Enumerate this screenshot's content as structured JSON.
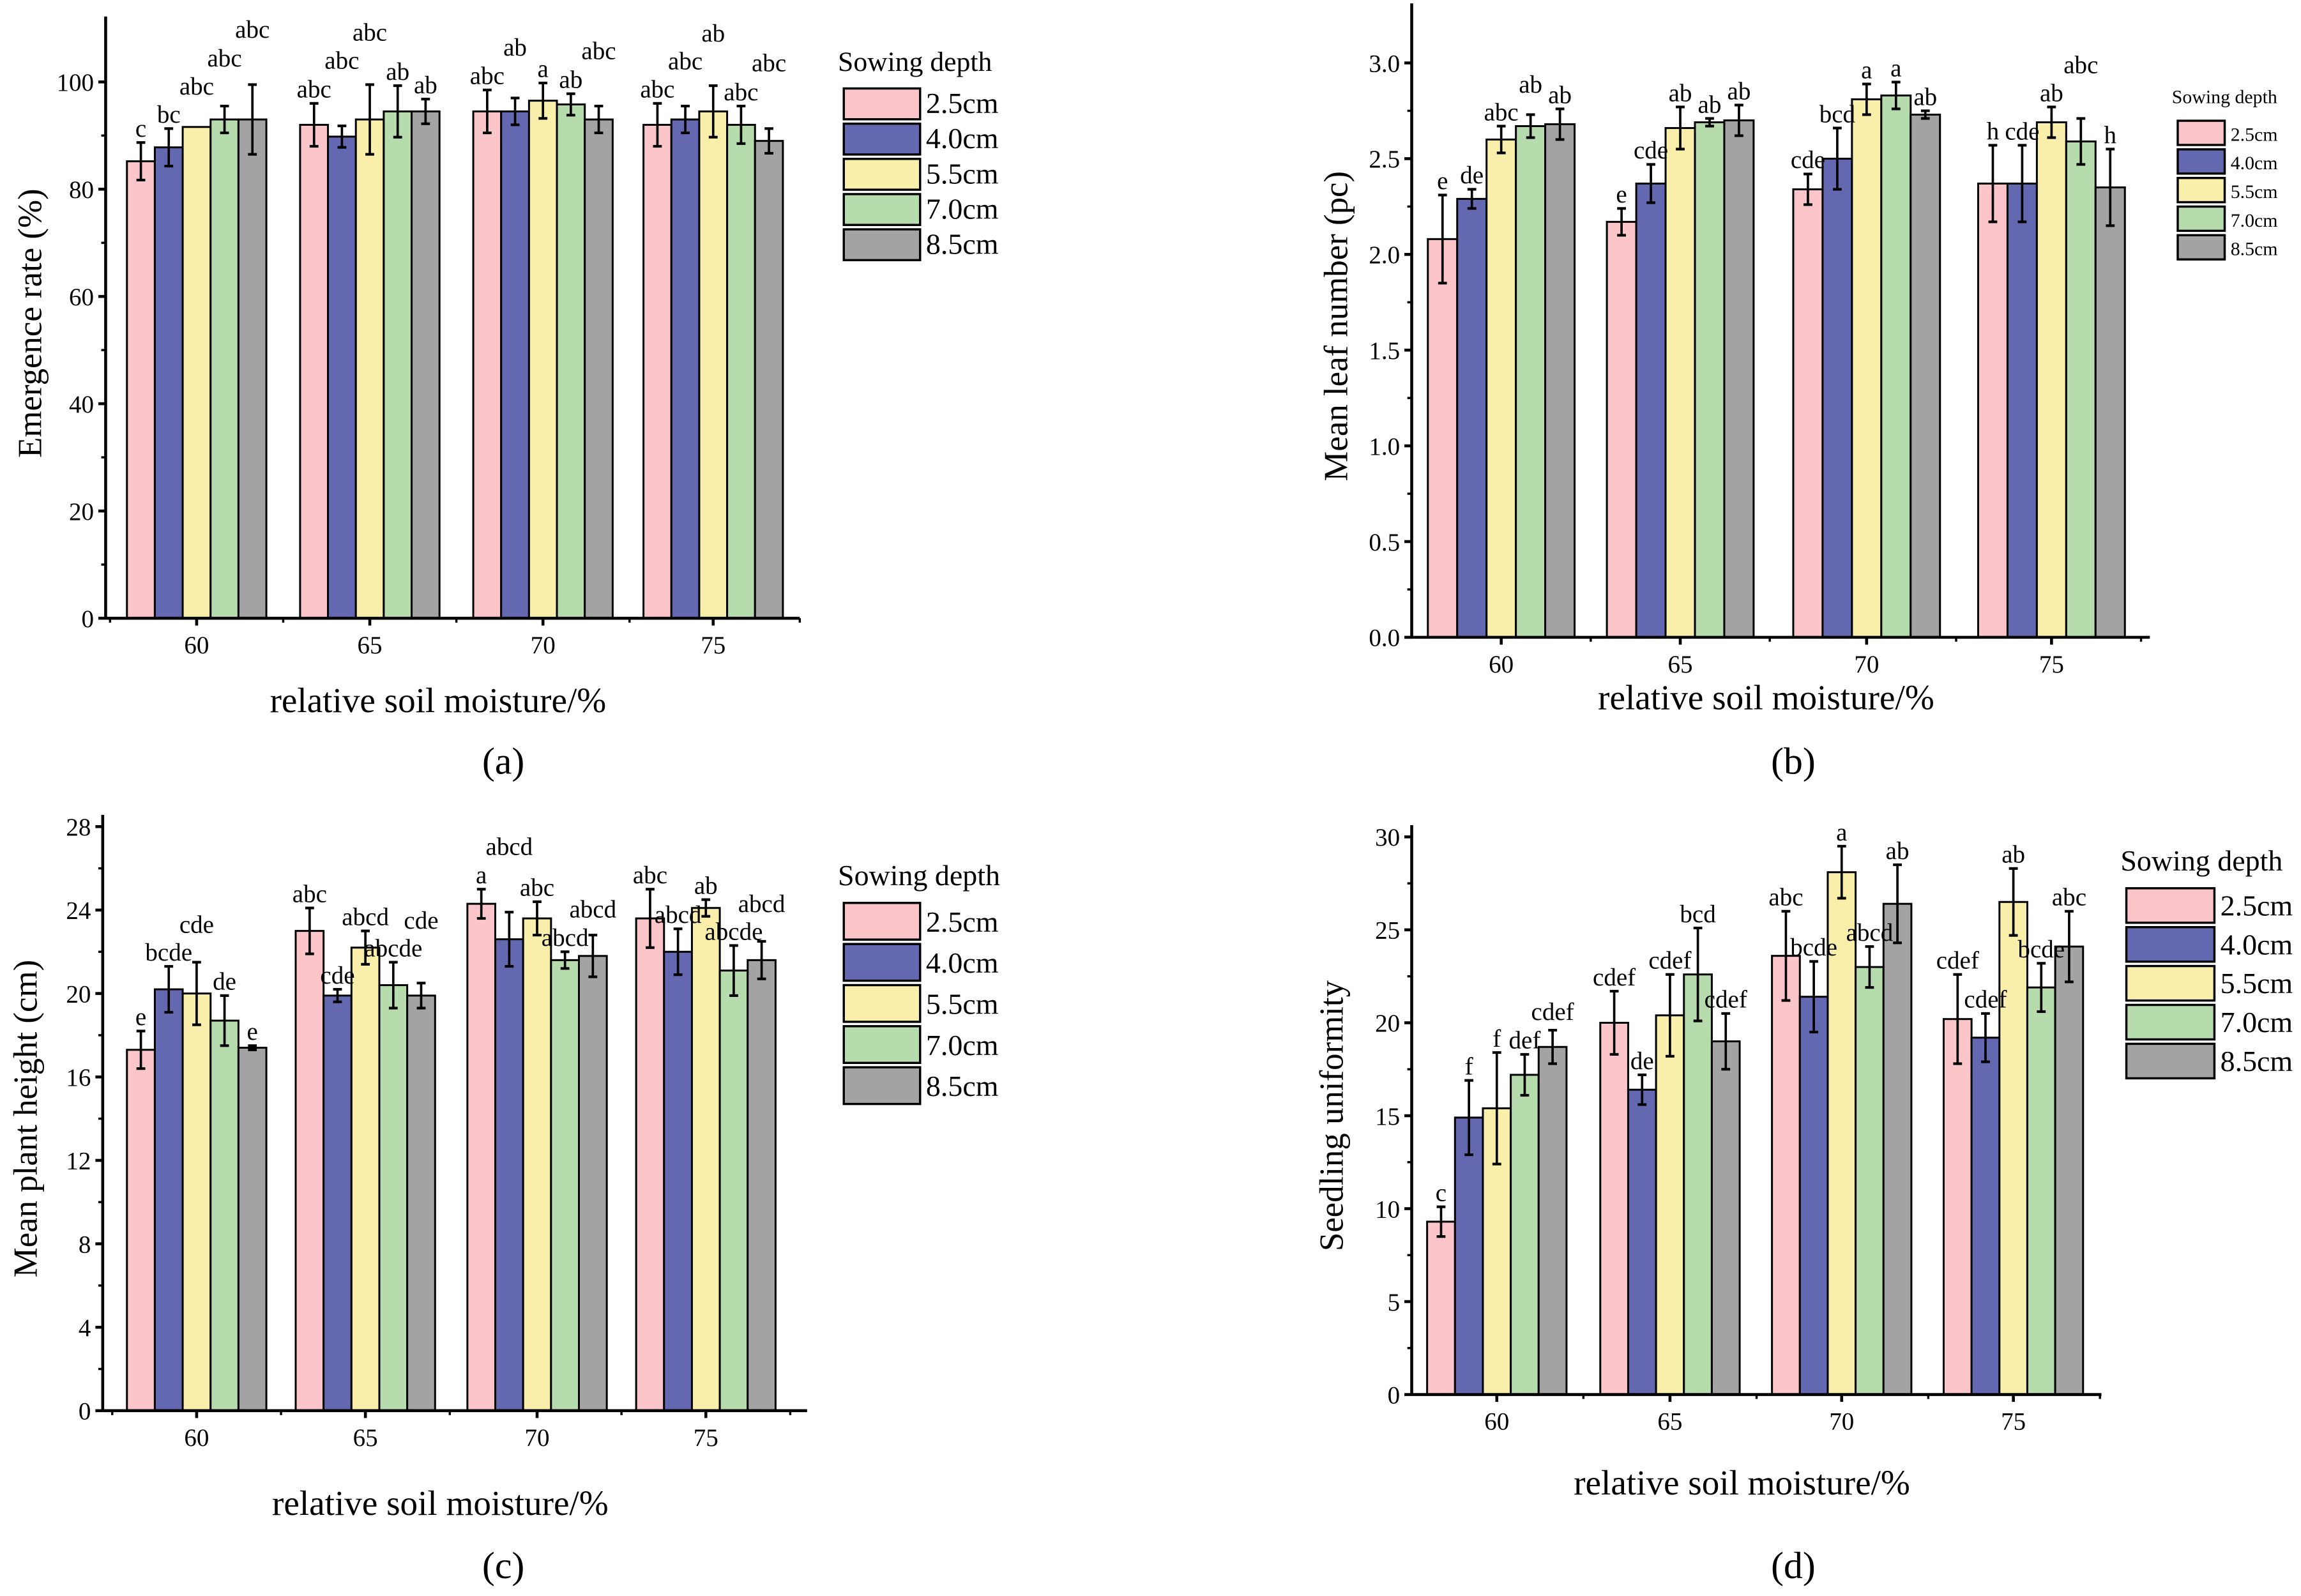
{
  "legend_colors": {
    "2.5cm": "#fcc5ca",
    "4.0cm": "#6468b0",
    "5.5cm": "#f9eeaa",
    "7.0cm": "#b6dcae",
    "8.5cm": "#a3a3a3"
  },
  "chart_data": [
    {
      "panel_label": "(a)",
      "type": "bar",
      "xlabel": "relative soil moisture/%",
      "ylabel": "Emergence rate (%)",
      "ylim": [
        0,
        110
      ],
      "yticks": [
        "0",
        "20",
        "40",
        "60",
        "80",
        "100"
      ],
      "categories": [
        "60",
        "65",
        "70",
        "75"
      ],
      "legend_title": "Sowing depth",
      "series": [
        {
          "name": "2.5cm",
          "values": [
            85.2,
            92,
            94.5,
            92
          ],
          "errors": [
            3.5,
            4,
            4,
            4
          ],
          "letters": [
            "c",
            "abc",
            "abc",
            "abc"
          ]
        },
        {
          "name": "4.0cm",
          "values": [
            87.8,
            89.8,
            94.5,
            93
          ],
          "errors": [
            3.5,
            2,
            2.5,
            2.5
          ],
          "letters": [
            "bc",
            "abc",
            "ab",
            "abc"
          ]
        },
        {
          "name": "5.5cm",
          "values": [
            91.6,
            93,
            96.5,
            94.5
          ],
          "errors": [
            0,
            6.5,
            3.3,
            4.8
          ],
          "letters": [
            "abc",
            "abc",
            "a",
            "ab"
          ]
        },
        {
          "name": "7.0cm",
          "values": [
            93,
            94.5,
            95.8,
            92
          ],
          "errors": [
            2.5,
            4.8,
            2,
            3.5
          ],
          "letters": [
            "abc",
            "ab",
            "ab",
            "abc"
          ]
        },
        {
          "name": "8.5cm",
          "values": [
            93,
            94.5,
            93,
            89
          ],
          "errors": [
            6.5,
            2.3,
            2.5,
            2.3
          ],
          "letters": [
            "abc",
            "ab",
            "abc",
            "abc"
          ]
        }
      ]
    },
    {
      "panel_label": "(b)",
      "type": "bar",
      "xlabel": "relative soil moisture/%",
      "ylabel": "Mean leaf number (pc)",
      "ylim": [
        0,
        3.25
      ],
      "yticks": [
        "0.0",
        "0.5",
        "1.0",
        "1.5",
        "2.0",
        "2.5",
        "3.0"
      ],
      "categories": [
        "60",
        "65",
        "70",
        "75"
      ],
      "legend_title": "Sowing depth",
      "series": [
        {
          "name": "2.5cm",
          "values": [
            2.08,
            2.17,
            2.34,
            2.37
          ],
          "errors": [
            0.23,
            0.07,
            0.08,
            0.2
          ],
          "letters": [
            "e",
            "e",
            "cde",
            "h"
          ]
        },
        {
          "name": "4.0cm",
          "values": [
            2.29,
            2.37,
            2.5,
            2.37
          ],
          "errors": [
            0.05,
            0.1,
            0.16,
            0.2
          ],
          "letters": [
            "de",
            "cde",
            "bcd",
            "cde"
          ]
        },
        {
          "name": "5.5cm",
          "values": [
            2.6,
            2.66,
            2.81,
            2.69
          ],
          "errors": [
            0.07,
            0.11,
            0.08,
            0.08
          ],
          "letters": [
            "abc",
            "ab",
            "a",
            "ab"
          ]
        },
        {
          "name": "7.0cm",
          "values": [
            2.67,
            2.69,
            2.83,
            2.59
          ],
          "errors": [
            0.06,
            0.02,
            0.07,
            0.12
          ],
          "letters": [
            "ab",
            "ab",
            "a",
            "abc"
          ]
        },
        {
          "name": "8.5cm",
          "values": [
            2.68,
            2.7,
            2.73,
            2.35
          ],
          "errors": [
            0.08,
            0.08,
            0.02,
            0.2
          ],
          "letters": [
            "ab",
            "ab",
            "ab",
            "h"
          ]
        }
      ]
    },
    {
      "panel_label": "(c)",
      "type": "bar",
      "xlabel": "relative soil moisture/%",
      "ylabel": "Mean plant height (cm)",
      "ylim": [
        0,
        28
      ],
      "yticks": [
        "0",
        "4",
        "8",
        "12",
        "16",
        "20",
        "24",
        "28"
      ],
      "categories": [
        "60",
        "65",
        "70",
        "75"
      ],
      "legend_title": "Sowing depth",
      "series": [
        {
          "name": "2.5cm",
          "values": [
            17.3,
            23,
            24.3,
            23.6
          ],
          "errors": [
            0.9,
            1.1,
            0.7,
            1.4
          ],
          "letters": [
            "e",
            "abc",
            "a",
            "abc"
          ]
        },
        {
          "name": "4.0cm",
          "values": [
            20.2,
            19.9,
            22.6,
            22
          ],
          "errors": [
            1.1,
            0.3,
            1.3,
            1.1
          ],
          "letters": [
            "bcde",
            "cde",
            "abcd",
            "abcd"
          ]
        },
        {
          "name": "5.5cm",
          "values": [
            20,
            22.2,
            23.6,
            24.1
          ],
          "errors": [
            1.5,
            0.8,
            0.8,
            0.4
          ],
          "letters": [
            "cde",
            "abcd",
            "abc",
            "ab"
          ]
        },
        {
          "name": "7.0cm",
          "values": [
            18.7,
            20.4,
            21.6,
            21.1
          ],
          "errors": [
            1.2,
            1.1,
            0.4,
            1.2
          ],
          "letters": [
            "de",
            "abcde",
            "abcd",
            "abcde"
          ]
        },
        {
          "name": "8.5cm",
          "values": [
            17.4,
            19.9,
            21.8,
            21.6
          ],
          "errors": [
            0.1,
            0.6,
            1,
            0.9
          ],
          "letters": [
            "e",
            "cde",
            "abcd",
            "abcd"
          ]
        }
      ]
    },
    {
      "panel_label": "(d)",
      "type": "bar",
      "xlabel": "relative soil moisture/%",
      "ylabel": "Seedling uniformity",
      "ylim": [
        0,
        30
      ],
      "yticks": [
        "0",
        "5",
        "10",
        "15",
        "20",
        "25",
        "30"
      ],
      "categories": [
        "60",
        "65",
        "70",
        "75"
      ],
      "legend_title": "Sowing depth",
      "series": [
        {
          "name": "2.5cm",
          "values": [
            9.3,
            20,
            23.6,
            20.2
          ],
          "errors": [
            0.8,
            1.7,
            2.4,
            2.4
          ],
          "letters": [
            "c",
            "cdef",
            "abc",
            "cdef"
          ]
        },
        {
          "name": "4.0cm",
          "values": [
            14.9,
            16.4,
            21.4,
            19.2
          ],
          "errors": [
            2,
            0.8,
            1.9,
            1.3
          ],
          "letters": [
            "f",
            "de",
            "bcde",
            "cdef"
          ]
        },
        {
          "name": "5.5cm",
          "values": [
            15.4,
            20.4,
            28.1,
            26.5
          ],
          "errors": [
            3,
            2.2,
            1.4,
            1.8
          ],
          "letters": [
            "f",
            "cdef",
            "a",
            "ab"
          ]
        },
        {
          "name": "7.0cm",
          "values": [
            17.2,
            22.6,
            23,
            21.9
          ],
          "errors": [
            1.1,
            2.5,
            1.1,
            1.3
          ],
          "letters": [
            "def",
            "bcd",
            "abcd",
            "bcde"
          ]
        },
        {
          "name": "8.5cm",
          "values": [
            18.7,
            19,
            26.4,
            24.1
          ],
          "errors": [
            0.9,
            1.5,
            2.1,
            1.9
          ],
          "letters": [
            "cdef",
            "cdef",
            "ab",
            "abc"
          ]
        }
      ]
    }
  ]
}
